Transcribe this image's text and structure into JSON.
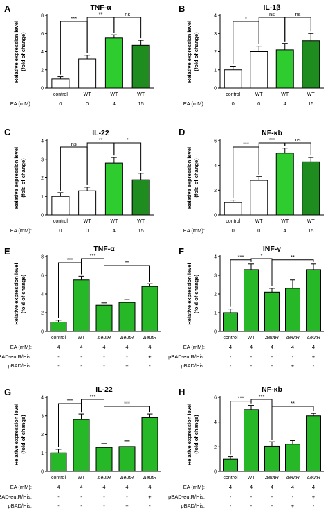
{
  "labels": {
    "ylabel_line1": "Relative expression level",
    "ylabel_line2": "(fold of change)",
    "ea_label": "EA (mM):",
    "pbad_eutr_label": "pBAD-eutR/His:",
    "pbad_his_label": "pBAD/His:"
  },
  "colors": {
    "white_bar": "#ffffff",
    "light_green": "#2ecc2e",
    "dark_green": "#1e8c1e",
    "mid_green": "#27b827",
    "axis": "#000000"
  },
  "chart_data": [
    {
      "letter": "A",
      "title": "TNF-α",
      "type": "bar",
      "categories": [
        "control",
        "WT",
        "WT",
        "WT"
      ],
      "ea": [
        "0",
        "0",
        "4",
        "15"
      ],
      "values": [
        1.0,
        3.2,
        5.5,
        4.7
      ],
      "errors": [
        0.25,
        0.4,
        0.35,
        0.55
      ],
      "fills": [
        "white",
        "white",
        "light",
        "dark"
      ],
      "ylim": [
        0,
        8
      ],
      "yticks": [
        0,
        2,
        4,
        6,
        8
      ],
      "sig": [
        {
          "a": 0,
          "b": 1,
          "text": "***"
        },
        {
          "a": 1,
          "b": 2,
          "text": "**"
        },
        {
          "a": 2,
          "b": 3,
          "text": "ns"
        }
      ]
    },
    {
      "letter": "B",
      "title": "IL-1β",
      "type": "bar",
      "categories": [
        "control",
        "WT",
        "WT",
        "WT"
      ],
      "ea": [
        "0",
        "0",
        "4",
        "15"
      ],
      "values": [
        1.0,
        2.0,
        2.1,
        2.6
      ],
      "errors": [
        0.2,
        0.3,
        0.35,
        0.4
      ],
      "fills": [
        "white",
        "white",
        "light",
        "dark"
      ],
      "ylim": [
        0,
        4
      ],
      "yticks": [
        0,
        1,
        2,
        3,
        4
      ],
      "sig": [
        {
          "a": 0,
          "b": 1,
          "text": "*"
        },
        {
          "a": 1,
          "b": 2,
          "text": "ns"
        },
        {
          "a": 2,
          "b": 3,
          "text": "ns"
        }
      ]
    },
    {
      "letter": "C",
      "title": "IL-22",
      "type": "bar",
      "categories": [
        "control",
        "WT",
        "WT",
        "WT"
      ],
      "ea": [
        "0",
        "0",
        "4",
        "15"
      ],
      "values": [
        1.0,
        1.3,
        2.8,
        1.9
      ],
      "errors": [
        0.2,
        0.2,
        0.3,
        0.35
      ],
      "fills": [
        "white",
        "white",
        "light",
        "dark"
      ],
      "ylim": [
        0,
        4
      ],
      "yticks": [
        0,
        1,
        2,
        3,
        4
      ],
      "sig": [
        {
          "a": 0,
          "b": 1,
          "text": "ns"
        },
        {
          "a": 1,
          "b": 2,
          "text": "**"
        },
        {
          "a": 2,
          "b": 3,
          "text": "*"
        }
      ]
    },
    {
      "letter": "D",
      "title": "NF-κb",
      "type": "bar",
      "categories": [
        "control",
        "WT",
        "WT",
        "WT"
      ],
      "ea": [
        "0",
        "0",
        "4",
        "15"
      ],
      "values": [
        1.0,
        2.8,
        5.0,
        4.3
      ],
      "errors": [
        0.2,
        0.3,
        0.4,
        0.35
      ],
      "fills": [
        "white",
        "white",
        "light",
        "dark"
      ],
      "ylim": [
        0,
        6
      ],
      "yticks": [
        0,
        2,
        4,
        6
      ],
      "sig": [
        {
          "a": 0,
          "b": 1,
          "text": "***"
        },
        {
          "a": 1,
          "b": 2,
          "text": "***"
        },
        {
          "a": 2,
          "b": 3,
          "text": "ns"
        }
      ]
    },
    {
      "letter": "E",
      "title": "TNF-α",
      "type": "bar",
      "categories": [
        "control",
        "WT",
        "ΔeutR",
        "ΔeutR",
        "ΔeutR"
      ],
      "ea": [
        "4",
        "4",
        "4",
        "4",
        "4"
      ],
      "pbad_eutr": [
        "-",
        "-",
        "-",
        "-",
        "+"
      ],
      "pbad_his": [
        "-",
        "-",
        "-",
        "+",
        "-"
      ],
      "values": [
        1.0,
        5.5,
        2.8,
        3.1,
        4.8
      ],
      "errors": [
        0.2,
        0.4,
        0.25,
        0.3,
        0.3
      ],
      "fills": [
        "mid",
        "mid",
        "mid",
        "mid",
        "mid"
      ],
      "ylim": [
        0,
        8
      ],
      "yticks": [
        0,
        2,
        4,
        6,
        8
      ],
      "sig": [
        {
          "a": 0,
          "b": 1,
          "text": "***"
        },
        {
          "a": 1,
          "b": 2,
          "text": "***"
        },
        {
          "a": 2,
          "b": 4,
          "text": "**"
        }
      ]
    },
    {
      "letter": "F",
      "title": "INF-γ",
      "type": "bar",
      "categories": [
        "control",
        "WT",
        "ΔeutR",
        "ΔeutR",
        "ΔeutR"
      ],
      "ea": [
        "4",
        "4",
        "4",
        "4",
        "4"
      ],
      "pbad_eutr": [
        "-",
        "-",
        "-",
        "-",
        "+"
      ],
      "pbad_his": [
        "-",
        "-",
        "-",
        "+",
        "-"
      ],
      "values": [
        1.0,
        3.3,
        2.1,
        2.3,
        3.3
      ],
      "errors": [
        0.2,
        0.3,
        0.2,
        0.45,
        0.3
      ],
      "fills": [
        "mid",
        "mid",
        "mid",
        "mid",
        "mid"
      ],
      "ylim": [
        0,
        4
      ],
      "yticks": [
        0,
        1,
        2,
        3,
        4
      ],
      "sig": [
        {
          "a": 0,
          "b": 1,
          "text": "***"
        },
        {
          "a": 1,
          "b": 2,
          "text": "*"
        },
        {
          "a": 2,
          "b": 4,
          "text": "**"
        }
      ]
    },
    {
      "letter": "G",
      "title": "IL-22",
      "type": "bar",
      "categories": [
        "control",
        "WT",
        "ΔeutR",
        "ΔeutR",
        "ΔeutR"
      ],
      "ea": [
        "4",
        "4",
        "4",
        "4",
        "4"
      ],
      "pbad_eutr": [
        "-",
        "-",
        "-",
        "-",
        "+"
      ],
      "pbad_his": [
        "-",
        "-",
        "-",
        "+",
        "-"
      ],
      "values": [
        1.0,
        2.8,
        1.3,
        1.35,
        2.9
      ],
      "errors": [
        0.2,
        0.3,
        0.2,
        0.3,
        0.2
      ],
      "fills": [
        "mid",
        "mid",
        "mid",
        "mid",
        "mid"
      ],
      "ylim": [
        0,
        4
      ],
      "yticks": [
        0,
        1,
        2,
        3,
        4
      ],
      "sig": [
        {
          "a": 0,
          "b": 1,
          "text": "***"
        },
        {
          "a": 1,
          "b": 2,
          "text": "***"
        },
        {
          "a": 2,
          "b": 4,
          "text": "***"
        }
      ]
    },
    {
      "letter": "H",
      "title": "NF-κb",
      "type": "bar",
      "categories": [
        "control",
        "WT",
        "ΔeutR",
        "ΔeutR",
        "ΔeutR"
      ],
      "ea": [
        "4",
        "4",
        "4",
        "4",
        "4"
      ],
      "pbad_eutr": [
        "-",
        "-",
        "-",
        "-",
        "+"
      ],
      "pbad_his": [
        "-",
        "-",
        "-",
        "+",
        "-"
      ],
      "values": [
        1.0,
        5.0,
        2.05,
        2.2,
        4.5
      ],
      "errors": [
        0.2,
        0.35,
        0.35,
        0.3,
        0.2
      ],
      "fills": [
        "mid",
        "mid",
        "mid",
        "mid",
        "mid"
      ],
      "ylim": [
        0,
        6
      ],
      "yticks": [
        0,
        2,
        4,
        6
      ],
      "sig": [
        {
          "a": 0,
          "b": 1,
          "text": "***"
        },
        {
          "a": 1,
          "b": 2,
          "text": "***"
        },
        {
          "a": 2,
          "b": 4,
          "text": "**"
        }
      ]
    }
  ]
}
